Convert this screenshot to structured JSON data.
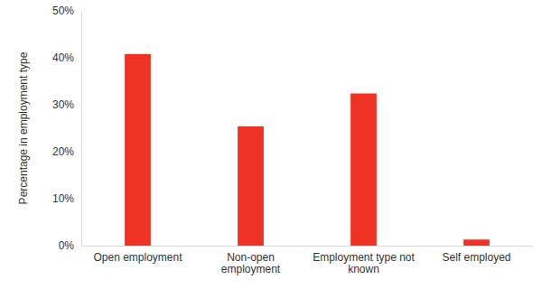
{
  "chart_data": {
    "type": "bar",
    "y_label": "Percentage in employment type",
    "categories": [
      "Open employment",
      "Non-open employment",
      "Employment type not known",
      "Self employed"
    ],
    "values": [
      40.8,
      25.4,
      32.4,
      1.3
    ],
    "color": "#ee3224",
    "ylim": [
      0,
      50
    ],
    "yticks": [
      {
        "value": 0,
        "label": "0%"
      },
      {
        "value": 10,
        "label": "10%"
      },
      {
        "value": 20,
        "label": "20%"
      },
      {
        "value": 30,
        "label": "30%"
      },
      {
        "value": 40,
        "label": "40%"
      },
      {
        "value": 50,
        "label": "50%"
      }
    ],
    "grid": false
  }
}
